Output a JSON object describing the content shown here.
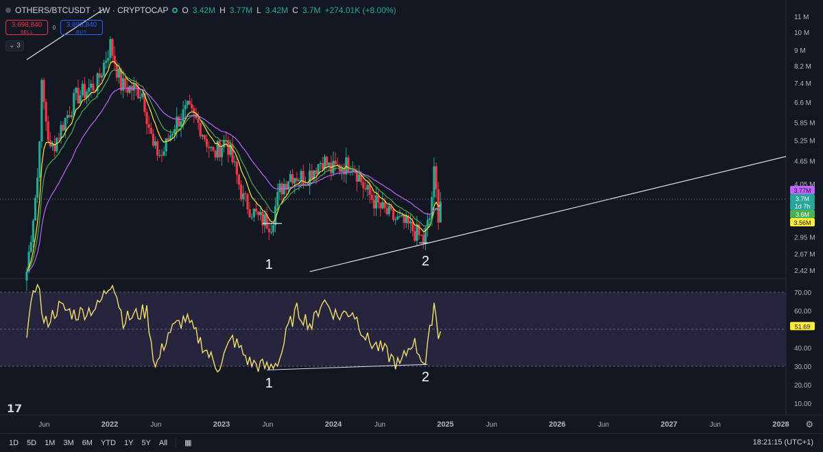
{
  "header": {
    "symbol": "OTHERS/BTCUSDT · 1W · CRYPTOCAP",
    "o_label": "O",
    "o_value": "3.42M",
    "h_label": "H",
    "h_value": "3.77M",
    "l_label": "L",
    "l_value": "3.42M",
    "c_label": "C",
    "c_value": "3.7M",
    "change": "+274.01K (+8.00%)"
  },
  "trade": {
    "sell_price": "3,698,840",
    "sell_label": "SELL",
    "spread": "0",
    "buy_price": "3,698,840",
    "buy_label": "BUY"
  },
  "indicator_chip": "3",
  "price_axis": {
    "labels": [
      "11 M",
      "10 M",
      "9 M",
      "8.2 M",
      "7.4 M",
      "6.6 M",
      "5.85 M",
      "5.25 M",
      "4.65 M",
      "4.05 M",
      "2.95 M",
      "2.67 M",
      "2.42 M"
    ],
    "tags": [
      {
        "text": "3.77M",
        "color": "#c264ff",
        "text_color": "#131722"
      },
      {
        "text": "3.7M",
        "color": "#26a69a",
        "text_color": "#ffffff"
      },
      {
        "text": "1d 7h",
        "color": "#26a69a",
        "text_color": "#ffffff"
      },
      {
        "text": "3.6M",
        "color": "#4caf50",
        "text_color": "#ffffff"
      },
      {
        "text": "3.56M",
        "color": "#ffeb3b",
        "text_color": "#131722"
      }
    ]
  },
  "rsi_axis": {
    "labels": [
      "70.00",
      "60.00",
      "40.00",
      "30.00",
      "20.00",
      "10.00"
    ],
    "tag": {
      "text": "51.69",
      "color": "#ffeb3b",
      "text_color": "#131722"
    }
  },
  "time_axis": {
    "labels": [
      "Jun",
      "2022",
      "Jun",
      "2023",
      "Jun",
      "2024",
      "Jun",
      "2025",
      "Jun",
      "2026",
      "Jun",
      "2027",
      "Jun",
      "2028"
    ]
  },
  "annotations": {
    "price_low_1": "1",
    "price_low_2": "2",
    "rsi_low_1": "1",
    "rsi_low_2": "2"
  },
  "timeframes": [
    "1D",
    "5D",
    "1M",
    "3M",
    "6M",
    "YTD",
    "1Y",
    "5Y",
    "All"
  ],
  "clock": "18:21:15 (UTC+1)",
  "colors": {
    "background": "#131722",
    "up": "#22ab94",
    "down": "#f23645",
    "ema_fast": "#ffeb3b",
    "ema_mid": "#4caf50",
    "ema_slow": "#c264ff",
    "rsi": "#f5e26b",
    "rsi_band": "#2a2640"
  },
  "icons": {
    "logo": "tradingview-logo-icon",
    "settings": "gear-icon",
    "date_range": "calendar-range-icon"
  },
  "chart_data": [
    {
      "type": "candlestick",
      "title": "OTHERS/BTCUSDT · 1W · CRYPTOCAP",
      "yscale": "log",
      "ylim": [
        2300000,
        11500000
      ],
      "x_range": [
        "2021-04",
        "2028-02"
      ],
      "anchors": [
        {
          "date": "2021-04-05",
          "close": 2400000
        },
        {
          "date": "2021-05-10",
          "close": 4200000
        },
        {
          "date": "2021-05-24",
          "close": 7200000
        },
        {
          "date": "2021-06-21",
          "close": 4900000
        },
        {
          "date": "2021-08-02",
          "close": 5800000
        },
        {
          "date": "2021-09-13",
          "close": 6800000
        },
        {
          "date": "2021-11-22",
          "close": 7400000
        },
        {
          "date": "2022-01-03",
          "close": 9300000
        },
        {
          "date": "2022-02-07",
          "close": 7300000
        },
        {
          "date": "2022-04-18",
          "close": 7000000
        },
        {
          "date": "2022-05-23",
          "close": 5000000
        },
        {
          "date": "2022-06-20",
          "close": 4800000
        },
        {
          "date": "2022-08-01",
          "close": 5800000
        },
        {
          "date": "2022-09-12",
          "close": 6300000
        },
        {
          "date": "2022-10-24",
          "close": 5700000
        },
        {
          "date": "2022-12-05",
          "close": 4800000
        },
        {
          "date": "2023-01-16",
          "close": 5300000
        },
        {
          "date": "2023-03-13",
          "close": 3700000
        },
        {
          "date": "2023-05-01",
          "close": 3300000
        },
        {
          "date": "2023-06-12",
          "close": 3200000
        },
        {
          "date": "2023-07-10",
          "close": 3900000
        },
        {
          "date": "2023-08-14",
          "close": 4300000
        },
        {
          "date": "2023-10-02",
          "close": 4200000
        },
        {
          "date": "2023-11-27",
          "close": 4700000
        },
        {
          "date": "2023-12-25",
          "close": 4400000
        },
        {
          "date": "2024-03-04",
          "close": 4600000
        },
        {
          "date": "2024-04-15",
          "close": 3900000
        },
        {
          "date": "2024-06-03",
          "close": 3500000
        },
        {
          "date": "2024-07-15",
          "close": 3300000
        },
        {
          "date": "2024-09-02",
          "close": 3150000
        },
        {
          "date": "2024-10-21",
          "close": 2900000
        },
        {
          "date": "2024-11-11",
          "close": 3300000
        },
        {
          "date": "2024-11-25",
          "close": 4300000
        },
        {
          "date": "2024-12-09",
          "close": 3400000
        },
        {
          "date": "2024-12-16",
          "close": 3700000
        }
      ],
      "series": [
        {
          "name": "EMA fast",
          "color": "#ffeb3b"
        },
        {
          "name": "EMA mid",
          "color": "#4caf50"
        },
        {
          "name": "EMA slow",
          "color": "#c264ff"
        }
      ],
      "trendlines": [
        {
          "from": {
            "date": "2021-04-05",
            "value": 8500000
          },
          "to": {
            "date": "2021-12-13",
            "value": 11500000
          }
        },
        {
          "from": {
            "date": "2023-10-16",
            "value": 2400000
          },
          "to": {
            "date": "2028-02-01",
            "value": 4800000
          }
        },
        {
          "from": {
            "date": "2023-05-15",
            "value": 3200000
          },
          "to": {
            "date": "2023-07-17",
            "value": 3200000
          }
        },
        {
          "from": {
            "date": "2024-10-07",
            "value": 2850000
          },
          "to": {
            "date": "2024-11-11",
            "value": 2850000
          }
        }
      ],
      "last_price": 3700000
    },
    {
      "type": "line",
      "title": "RSI",
      "ylim": [
        0,
        80
      ],
      "band": [
        30,
        70
      ],
      "midline": 50,
      "anchors": [
        {
          "date": "2021-04-05",
          "value": 49
        },
        {
          "date": "2021-05-10",
          "value": 78
        },
        {
          "date": "2021-05-31",
          "value": 52
        },
        {
          "date": "2021-07-19",
          "value": 62
        },
        {
          "date": "2021-09-13",
          "value": 58
        },
        {
          "date": "2021-11-22",
          "value": 62
        },
        {
          "date": "2022-01-10",
          "value": 77
        },
        {
          "date": "2022-02-14",
          "value": 55
        },
        {
          "date": "2022-05-02",
          "value": 60
        },
        {
          "date": "2022-05-30",
          "value": 29
        },
        {
          "date": "2022-07-11",
          "value": 48
        },
        {
          "date": "2022-09-05",
          "value": 56
        },
        {
          "date": "2022-11-14",
          "value": 38
        },
        {
          "date": "2022-12-19",
          "value": 29
        },
        {
          "date": "2023-02-06",
          "value": 45
        },
        {
          "date": "2023-04-03",
          "value": 32
        },
        {
          "date": "2023-06-05",
          "value": 29
        },
        {
          "date": "2023-07-10",
          "value": 34
        },
        {
          "date": "2023-08-07",
          "value": 51
        },
        {
          "date": "2023-09-04",
          "value": 60
        },
        {
          "date": "2023-10-23",
          "value": 52
        },
        {
          "date": "2023-11-27",
          "value": 66
        },
        {
          "date": "2024-01-15",
          "value": 57
        },
        {
          "date": "2024-03-04",
          "value": 60
        },
        {
          "date": "2024-04-22",
          "value": 44
        },
        {
          "date": "2024-06-17",
          "value": 38
        },
        {
          "date": "2024-08-05",
          "value": 30
        },
        {
          "date": "2024-09-16",
          "value": 44
        },
        {
          "date": "2024-10-28",
          "value": 31
        },
        {
          "date": "2024-11-25",
          "value": 65
        },
        {
          "date": "2024-12-09",
          "value": 47
        },
        {
          "date": "2024-12-16",
          "value": 52
        }
      ],
      "trendlines": [
        {
          "from": {
            "date": "2023-05-29",
            "value": 28
          },
          "to": {
            "date": "2024-11-04",
            "value": 31
          }
        }
      ],
      "last_value": 51.69
    }
  ]
}
